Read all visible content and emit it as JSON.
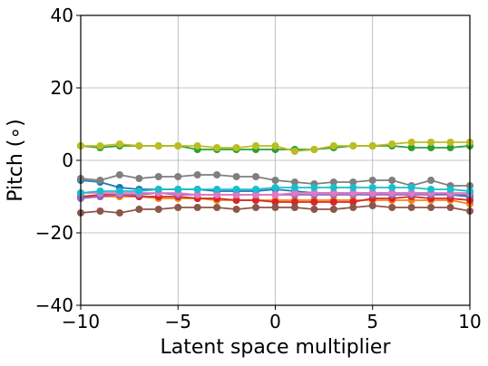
{
  "chart_data": {
    "type": "line",
    "xlabel": "Latent space multiplier",
    "ylabel": "Pitch (∘)",
    "xlim": [
      -10,
      10
    ],
    "ylim": [
      -40,
      40
    ],
    "xticks": [
      -10,
      -5,
      0,
      5,
      10
    ],
    "xtick_labels": [
      "−10",
      "−5",
      "0",
      "5",
      "10"
    ],
    "yticks": [
      -40,
      -20,
      0,
      20,
      40
    ],
    "ytick_labels": [
      "−40",
      "−20",
      "0",
      "20",
      "40"
    ],
    "grid": true,
    "legend": "none",
    "x": [
      -10,
      -9,
      -8,
      -7,
      -6,
      -5,
      -4,
      -3,
      -2,
      -1,
      0,
      1,
      2,
      3,
      4,
      5,
      6,
      7,
      8,
      9,
      10
    ],
    "series": [
      {
        "color": "#1f77b4",
        "values": [
          -5.5,
          -6,
          -7.5,
          -8,
          -8,
          -8,
          -8,
          -8.5,
          -8.5,
          -8.5,
          -8,
          -8.5,
          -9,
          -9,
          -9,
          -9,
          -9,
          -9,
          -9,
          -9.5,
          -10
        ]
      },
      {
        "color": "#ff7f0e",
        "values": [
          -10,
          -10,
          -10,
          -10,
          -10.5,
          -10.5,
          -10.5,
          -11,
          -11,
          -11,
          -11,
          -11,
          -11,
          -11,
          -11,
          -11,
          -11,
          -11,
          -11,
          -11,
          -12
        ]
      },
      {
        "color": "#2ca02c",
        "values": [
          4,
          3.5,
          4,
          4,
          4,
          4,
          3,
          3,
          3,
          3,
          3,
          3,
          3,
          3.5,
          4,
          4,
          4,
          3.5,
          3.5,
          3.5,
          4
        ]
      },
      {
        "color": "#d62728",
        "values": [
          -10,
          -9.5,
          -9.5,
          -10,
          -10,
          -10,
          -10.5,
          -10.5,
          -11,
          -11,
          -11.5,
          -11.5,
          -11.5,
          -11.5,
          -11.5,
          -10.5,
          -10.5,
          -10,
          -10.5,
          -10.5,
          -11
        ]
      },
      {
        "color": "#9467bd",
        "values": [
          -10.5,
          -10,
          -9.5,
          -9.5,
          -9,
          -9.5,
          -9.5,
          -9.5,
          -9.5,
          -9.5,
          -9.5,
          -9.5,
          -9.5,
          -9.5,
          -9.5,
          -9.5,
          -9.5,
          -9.5,
          -9.5,
          -9.5,
          -9.5
        ]
      },
      {
        "color": "#8c564b",
        "values": [
          -14.5,
          -14,
          -14.5,
          -13.5,
          -13.5,
          -13,
          -13,
          -13,
          -13.5,
          -13,
          -13,
          -13,
          -13.5,
          -13.5,
          -13,
          -12.5,
          -13,
          -13,
          -13,
          -13,
          -14
        ]
      },
      {
        "color": "#e377c2",
        "values": [
          -9,
          -9,
          -9,
          -9,
          -9,
          -9,
          -9.5,
          -9.5,
          -9.5,
          -9.5,
          -9.5,
          -9,
          -9,
          -9,
          -9,
          -9,
          -9,
          -9,
          -9,
          -9,
          -9
        ]
      },
      {
        "color": "#7f7f7f",
        "values": [
          -5,
          -5.5,
          -4,
          -5,
          -4.5,
          -4.5,
          -4,
          -4,
          -4.5,
          -4.5,
          -5.5,
          -6,
          -6.5,
          -6,
          -6,
          -5.5,
          -5.5,
          -7,
          -5.5,
          -7,
          -7
        ]
      },
      {
        "color": "#bcbd22",
        "values": [
          4,
          4,
          4.5,
          4,
          4,
          4,
          4,
          3.5,
          3.5,
          4,
          4,
          2.5,
          3,
          4,
          4,
          4,
          4.5,
          5,
          5,
          5,
          5
        ]
      },
      {
        "color": "#17becf",
        "values": [
          -9,
          -8.5,
          -8.5,
          -8.5,
          -8,
          -8,
          -8,
          -8,
          -8,
          -8,
          -7.5,
          -7.5,
          -7.5,
          -7.5,
          -7.5,
          -7.5,
          -7.5,
          -7.5,
          -8,
          -8,
          -8.5
        ]
      }
    ]
  }
}
